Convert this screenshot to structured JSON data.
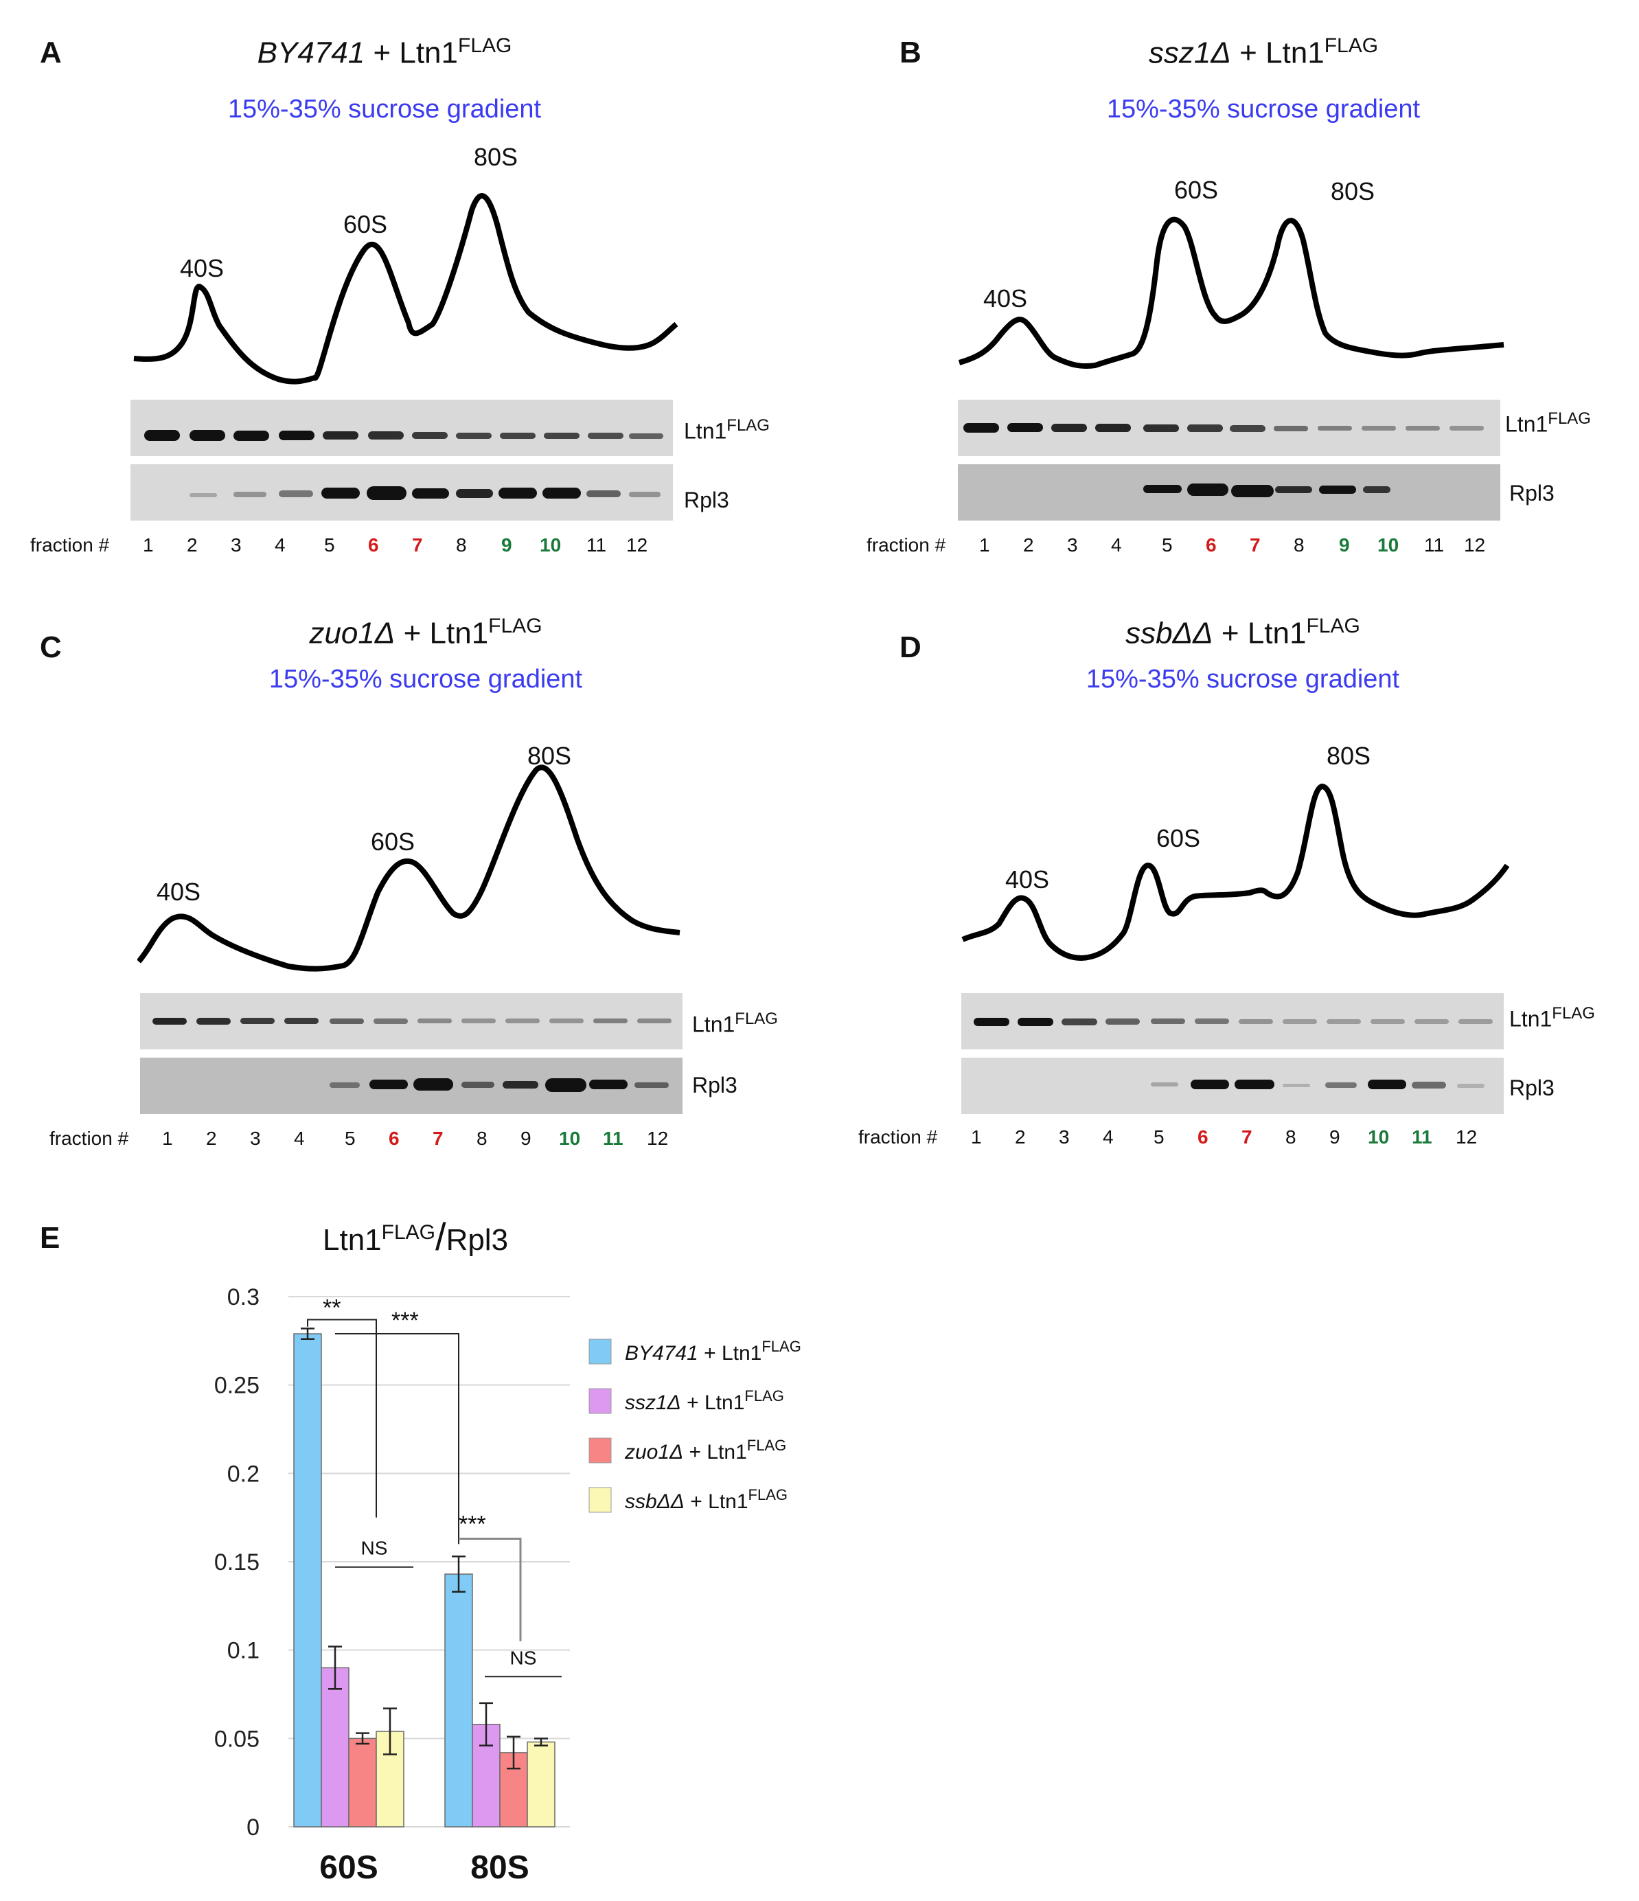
{
  "panels": [
    {
      "id": "A",
      "label": "A",
      "title_strain": "BY4741",
      "title_plus": " + Ltn1",
      "title_sup": "FLAG",
      "subtitle": "15%-35% sucrose gradient",
      "peaks": [
        "40S",
        "60S",
        "80S"
      ],
      "blot_labels": [
        "Ltn1",
        "FLAG",
        "Rpl3"
      ],
      "fraction_label": "fraction #",
      "fractions": [
        "1",
        "2",
        "3",
        "4",
        "5",
        "6",
        "7",
        "8",
        "9",
        "10",
        "11",
        "12"
      ],
      "red": [
        "6",
        "7"
      ],
      "green": [
        "9",
        "10"
      ]
    },
    {
      "id": "B",
      "label": "B",
      "title_strain": "ssz1Δ",
      "title_plus": " + Ltn1",
      "title_sup": "FLAG",
      "subtitle": "15%-35% sucrose gradient",
      "peaks": [
        "40S",
        "60S",
        "80S"
      ],
      "blot_labels": [
        "Ltn1",
        "FLAG",
        "Rpl3"
      ],
      "fraction_label": "fraction #",
      "fractions": [
        "1",
        "2",
        "3",
        "4",
        "5",
        "6",
        "7",
        "8",
        "9",
        "10",
        "11",
        "12"
      ],
      "red": [
        "6",
        "7"
      ],
      "green": [
        "9",
        "10"
      ]
    },
    {
      "id": "C",
      "label": "C",
      "title_strain": "zuo1Δ",
      "title_plus": " + Ltn1",
      "title_sup": "FLAG",
      "subtitle": "15%-35% sucrose gradient",
      "peaks": [
        "40S",
        "60S",
        "80S"
      ],
      "blot_labels": [
        "Ltn1",
        "FLAG",
        "Rpl3"
      ],
      "fraction_label": "fraction #",
      "fractions": [
        "1",
        "2",
        "3",
        "4",
        "5",
        "6",
        "7",
        "8",
        "9",
        "10",
        "11",
        "12"
      ],
      "red": [
        "6",
        "7"
      ],
      "green": [
        "10",
        "11"
      ]
    },
    {
      "id": "D",
      "label": "D",
      "title_strain": "ssbΔΔ",
      "title_plus": " + Ltn1",
      "title_sup": "FLAG",
      "subtitle": "15%-35% sucrose gradient",
      "peaks": [
        "40S",
        "60S",
        "80S"
      ],
      "blot_labels": [
        "Ltn1",
        "FLAG",
        "Rpl3"
      ],
      "fraction_label": "fraction #",
      "fractions": [
        "1",
        "2",
        "3",
        "4",
        "5",
        "6",
        "7",
        "8",
        "9",
        "10",
        "11",
        "12"
      ],
      "red": [
        "6",
        "7"
      ],
      "green": [
        "10",
        "11"
      ]
    }
  ],
  "panelE": {
    "label": "E"
  },
  "chart_data": {
    "type": "bar",
    "title_main": "Ltn1",
    "title_sup": "FLAG",
    "title_sep": "/",
    "title_den": "Rpl3",
    "categories": [
      "60S",
      "80S"
    ],
    "ylim": [
      0,
      0.3
    ],
    "yticks": [
      "0",
      "0.05",
      "0.1",
      "0.15",
      "0.2",
      "0.25",
      "0.3"
    ],
    "series": [
      {
        "name_strain": "BY4741",
        "name_rest": " + Ltn1",
        "name_sup": "FLAG",
        "color": "#7fcbf5",
        "values": [
          0.279,
          0.143
        ],
        "errors": [
          0.003,
          0.01
        ]
      },
      {
        "name_strain": "ssz1Δ",
        "name_rest": " + Ltn1",
        "name_sup": "FLAG",
        "color": "#dd99f0",
        "values": [
          0.09,
          0.058
        ],
        "errors": [
          0.012,
          0.012
        ]
      },
      {
        "name_strain": "zuo1Δ",
        "name_rest": " + Ltn1",
        "name_sup": "FLAG",
        "color": "#f88585",
        "values": [
          0.05,
          0.042
        ],
        "errors": [
          0.003,
          0.009
        ]
      },
      {
        "name_strain": "ssbΔΔ",
        "name_rest": " + Ltn1",
        "name_sup": "FLAG",
        "color": "#fbf7b4",
        "values": [
          0.054,
          0.048
        ],
        "errors": [
          0.013,
          0.002
        ]
      }
    ],
    "annotations": [
      "**",
      "***",
      "NS",
      "***",
      "NS"
    ]
  },
  "colors": {
    "subtitle": "#3b3bf0",
    "red": "#d31b1b",
    "green": "#1a7a3a"
  }
}
